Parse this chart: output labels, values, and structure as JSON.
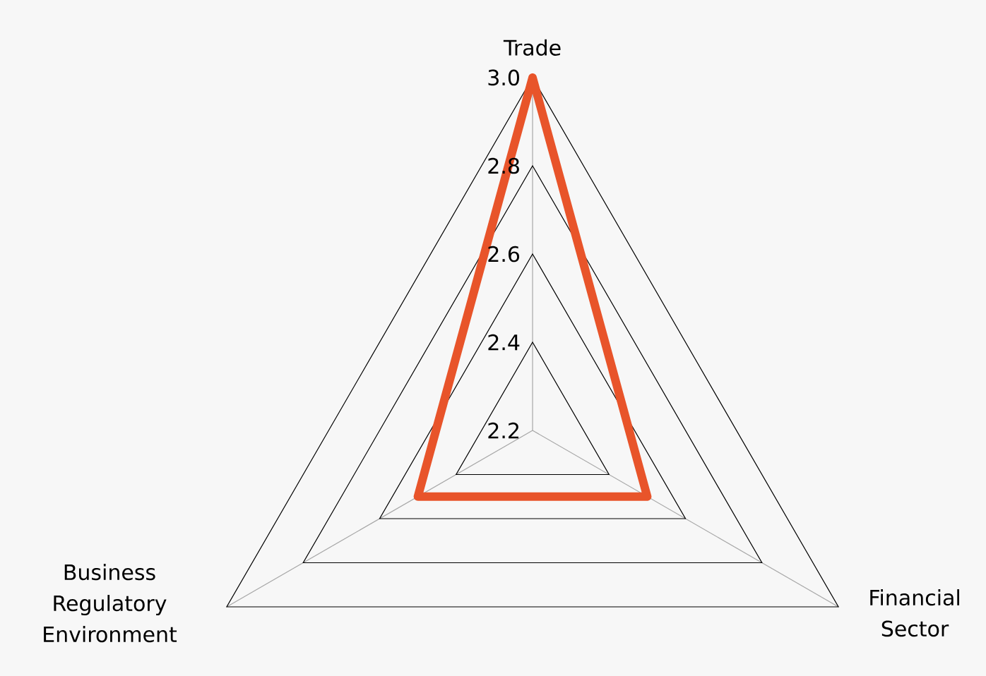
{
  "chart_data": {
    "type": "radar",
    "categories": [
      "Trade",
      "Financial Sector",
      "Business Regulatory Environment"
    ],
    "series": [
      {
        "color": "#e8542a",
        "values": [
          3.0,
          2.5,
          2.5
        ]
      }
    ],
    "ylim": [
      2.2,
      3.0
    ],
    "yticks": [
      {
        "value": 2.2,
        "label": "2.2"
      },
      {
        "value": 2.4,
        "label": "2.4"
      },
      {
        "value": 2.6,
        "label": "2.6"
      },
      {
        "value": 2.8,
        "label": "2.8"
      },
      {
        "value": 3.0,
        "label": "3.0"
      }
    ],
    "grid": true,
    "marker": "none",
    "line_style": "solid"
  }
}
